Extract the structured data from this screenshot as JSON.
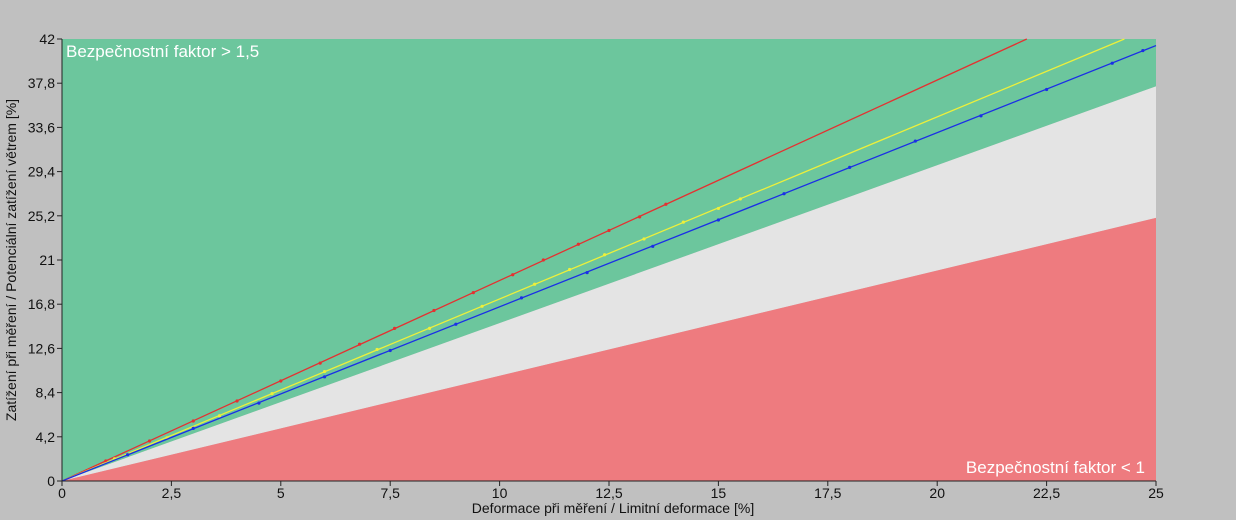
{
  "chart_data": {
    "type": "scatter",
    "xlabel": "Deformace při měření / Limitní deformace [%]",
    "ylabel": "Zatížení při měření / Potenciální zatížení větrem [%]",
    "xlim": [
      0,
      25
    ],
    "ylim": [
      0,
      42
    ],
    "x_ticks": [
      "0",
      "2,5",
      "5",
      "7,5",
      "10",
      "12,5",
      "15",
      "17,5",
      "20",
      "22,5",
      "25"
    ],
    "y_ticks": [
      "0",
      "4,2",
      "8,4",
      "12,6",
      "16,8",
      "21",
      "25,2",
      "29,4",
      "33,6",
      "37,8",
      "42"
    ],
    "grid": false,
    "annotations": {
      "top_left": "Bezpečnostní faktor > 1,5",
      "bottom_right": "Bezpečnostní faktor < 1"
    },
    "zones": [
      {
        "label": "Bezpečnostní faktor > 1,5",
        "color": "#6cc69d",
        "lower_boundary": [
          [
            0,
            0
          ],
          [
            25,
            37.5
          ]
        ]
      },
      {
        "color": "#e4e4e4",
        "lower_boundary": [
          [
            0,
            0
          ],
          [
            25,
            25
          ]
        ],
        "upper_boundary": [
          [
            0,
            0
          ],
          [
            25,
            37.5
          ]
        ]
      },
      {
        "label": "Bezpečnostní faktor < 1",
        "color": "#ee7b7f",
        "upper_boundary": [
          [
            0,
            0
          ],
          [
            25,
            25
          ]
        ]
      }
    ],
    "series": [
      {
        "color": "#e53030",
        "fit_slope": 1.905,
        "points": [
          [
            1.0,
            1.9
          ],
          [
            2.0,
            3.8
          ],
          [
            3.0,
            5.7
          ],
          [
            4.0,
            7.6
          ],
          [
            5.0,
            9.5
          ],
          [
            5.9,
            11.2
          ],
          [
            6.8,
            13.0
          ],
          [
            7.6,
            14.5
          ],
          [
            8.5,
            16.2
          ],
          [
            9.4,
            17.9
          ],
          [
            10.3,
            19.6
          ],
          [
            11.0,
            21.0
          ],
          [
            11.8,
            22.5
          ],
          [
            12.5,
            23.8
          ],
          [
            13.2,
            25.1
          ],
          [
            13.8,
            26.3
          ]
        ]
      },
      {
        "color": "#eef03a",
        "fit_slope": 1.73,
        "points": [
          [
            1.2,
            2.1
          ],
          [
            2.4,
            4.1
          ],
          [
            3.6,
            6.2
          ],
          [
            4.8,
            8.3
          ],
          [
            6.0,
            10.4
          ],
          [
            7.2,
            12.5
          ],
          [
            8.4,
            14.5
          ],
          [
            9.6,
            16.6
          ],
          [
            10.8,
            18.7
          ],
          [
            11.6,
            20.1
          ],
          [
            12.4,
            21.5
          ],
          [
            13.3,
            23.0
          ],
          [
            14.2,
            24.6
          ],
          [
            15.0,
            25.9
          ],
          [
            15.5,
            26.8
          ]
        ]
      },
      {
        "color": "#1a2ee6",
        "fit_slope": 1.655,
        "points": [
          [
            1.5,
            2.5
          ],
          [
            3.0,
            5.0
          ],
          [
            4.5,
            7.4
          ],
          [
            6.0,
            9.9
          ],
          [
            7.5,
            12.4
          ],
          [
            9.0,
            14.9
          ],
          [
            10.5,
            17.4
          ],
          [
            12.0,
            19.8
          ],
          [
            13.5,
            22.3
          ],
          [
            15.0,
            24.8
          ],
          [
            16.5,
            27.3
          ],
          [
            18.0,
            29.8
          ],
          [
            19.5,
            32.3
          ],
          [
            21.0,
            34.7
          ],
          [
            22.5,
            37.2
          ],
          [
            24.0,
            39.7
          ],
          [
            24.7,
            40.9
          ]
        ]
      }
    ]
  }
}
